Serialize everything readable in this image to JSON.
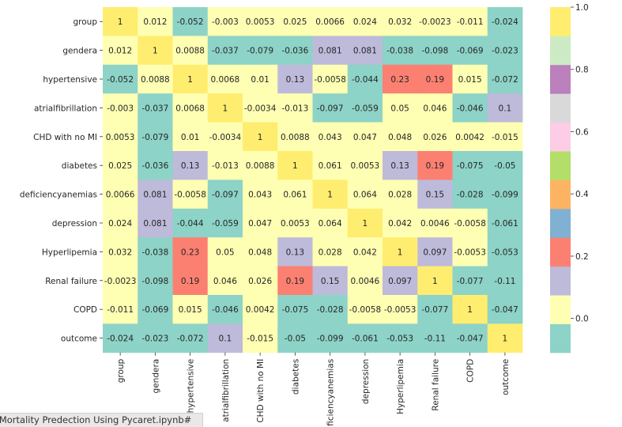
{
  "chart_data": {
    "type": "heatmap",
    "title": "",
    "row_labels": [
      "group",
      "gendera",
      "hypertensive",
      "atrialfibrillation",
      "CHD with no MI",
      "diabetes",
      "deficiencyanemias",
      "depression",
      "Hyperlipemia",
      "Renal failure",
      "COPD",
      "outcome"
    ],
    "col_labels": [
      "group",
      "gendera",
      "hypertensive",
      "atrialfibrillation",
      "CHD with no MI",
      "diabetes",
      "deficiencyanemias",
      "depression",
      "Hyperlipemia",
      "Renal failure",
      "COPD",
      "outcome"
    ],
    "annotations": [
      [
        "1",
        "0.012",
        "-0.052",
        "-0.003",
        "0.0053",
        "0.025",
        "0.0066",
        "0.024",
        "0.032",
        "-0.0023",
        "-0.011",
        "-0.024"
      ],
      [
        "0.012",
        "1",
        "0.0088",
        "-0.037",
        "-0.079",
        "-0.036",
        "0.081",
        "0.081",
        "-0.038",
        "-0.098",
        "-0.069",
        "-0.023"
      ],
      [
        "-0.052",
        "0.0088",
        "1",
        "0.0068",
        "0.01",
        "0.13",
        "-0.0058",
        "-0.044",
        "0.23",
        "0.19",
        "0.015",
        "-0.072"
      ],
      [
        "-0.003",
        "-0.037",
        "0.0068",
        "1",
        "-0.0034",
        "-0.013",
        "-0.097",
        "-0.059",
        "0.05",
        "0.046",
        "-0.046",
        "0.1"
      ],
      [
        "0.0053",
        "-0.079",
        "0.01",
        "-0.0034",
        "1",
        "0.0088",
        "0.043",
        "0.047",
        "0.048",
        "0.026",
        "0.0042",
        "-0.015"
      ],
      [
        "0.025",
        "-0.036",
        "0.13",
        "-0.013",
        "0.0088",
        "1",
        "0.061",
        "0.0053",
        "0.13",
        "0.19",
        "-0.075",
        "-0.05"
      ],
      [
        "0.0066",
        "0.081",
        "-0.0058",
        "-0.097",
        "0.043",
        "0.061",
        "1",
        "0.064",
        "0.028",
        "0.15",
        "-0.028",
        "-0.099"
      ],
      [
        "0.024",
        "0.081",
        "-0.044",
        "-0.059",
        "0.047",
        "0.0053",
        "0.064",
        "1",
        "0.042",
        "0.0046",
        "-0.0058",
        "-0.061"
      ],
      [
        "0.032",
        "-0.038",
        "0.23",
        "0.05",
        "0.048",
        "0.13",
        "0.028",
        "0.042",
        "1",
        "0.097",
        "-0.0053",
        "-0.053"
      ],
      [
        "-0.0023",
        "-0.098",
        "0.19",
        "0.046",
        "0.026",
        "0.19",
        "0.15",
        "0.0046",
        "0.097",
        "1",
        "-0.077",
        "-0.11"
      ],
      [
        "-0.011",
        "-0.069",
        "0.015",
        "-0.046",
        "0.0042",
        "-0.075",
        "-0.028",
        "-0.0058",
        "-0.0053",
        "-0.077",
        "1",
        "-0.047"
      ],
      [
        "-0.024",
        "-0.023",
        "-0.072",
        "0.1",
        "-0.015",
        "-0.05",
        "-0.099",
        "-0.061",
        "-0.053",
        "-0.11",
        "-0.047",
        "1"
      ]
    ],
    "colormap": "Set3",
    "colorbar": {
      "vmin": -0.11,
      "vmax": 1.0,
      "ticks": [
        1.0,
        0.8,
        0.6,
        0.4,
        0.2,
        0.0
      ],
      "tick_labels": [
        "1.0",
        "0.8",
        "0.6",
        "0.4",
        "0.2",
        "0.0"
      ],
      "colors_bottom_to_top": [
        "#8dd3c7",
        "#ffffb3",
        "#bebada",
        "#fb8072",
        "#80b1d3",
        "#fdb462",
        "#b3de69",
        "#fccde5",
        "#d9d9d9",
        "#bc80bd",
        "#ccebc5",
        "#ffed6f"
      ]
    }
  },
  "footer": {
    "tab_label": "l Mortality Predection Using Pycaret.ipynb#"
  }
}
